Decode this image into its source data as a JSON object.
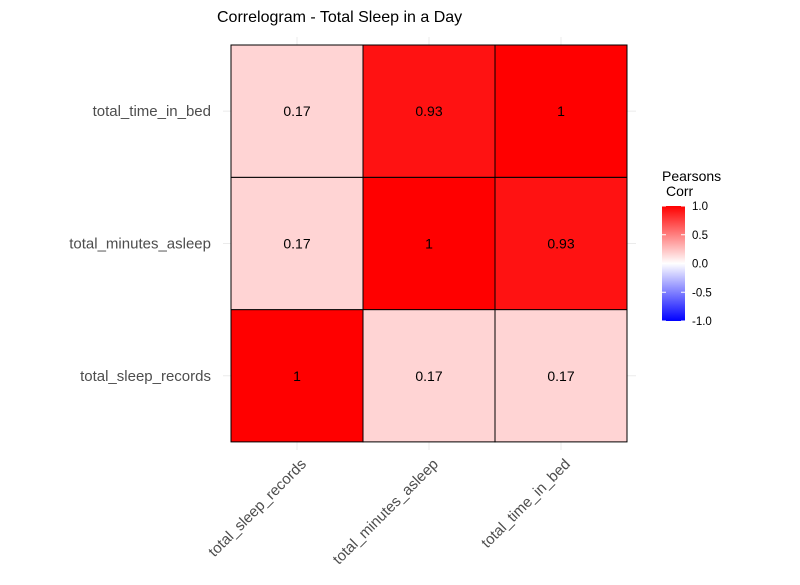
{
  "chart_data": {
    "type": "heatmap",
    "title": "Correlogram - Total Sleep in a Day",
    "x_categories": [
      "total_sleep_records",
      "total_minutes_asleep",
      "total_time_in_bed"
    ],
    "y_categories": [
      "total_sleep_records",
      "total_minutes_asleep",
      "total_time_in_bed"
    ],
    "values": [
      [
        1,
        0.17,
        0.17
      ],
      [
        0.17,
        1,
        0.93
      ],
      [
        0.17,
        0.93,
        1
      ]
    ],
    "value_labels": [
      [
        "1",
        "0.17",
        "0.17"
      ],
      [
        "0.17",
        "1",
        "0.93"
      ],
      [
        "0.17",
        "0.93",
        "1"
      ]
    ],
    "legend": {
      "title_lines": [
        "Pearsons",
        "Corr"
      ],
      "ticks": [
        1.0,
        0.5,
        0.0,
        -0.5,
        -1.0
      ],
      "tick_labels": [
        "1.0",
        "0.5",
        "0.0",
        "-0.5",
        "-1.0"
      ],
      "range": [
        -1,
        1
      ],
      "low_color": "#0000ff",
      "mid_color": "#ffffff",
      "high_color": "#ff0000",
      "placement": "right"
    },
    "grid": true
  }
}
